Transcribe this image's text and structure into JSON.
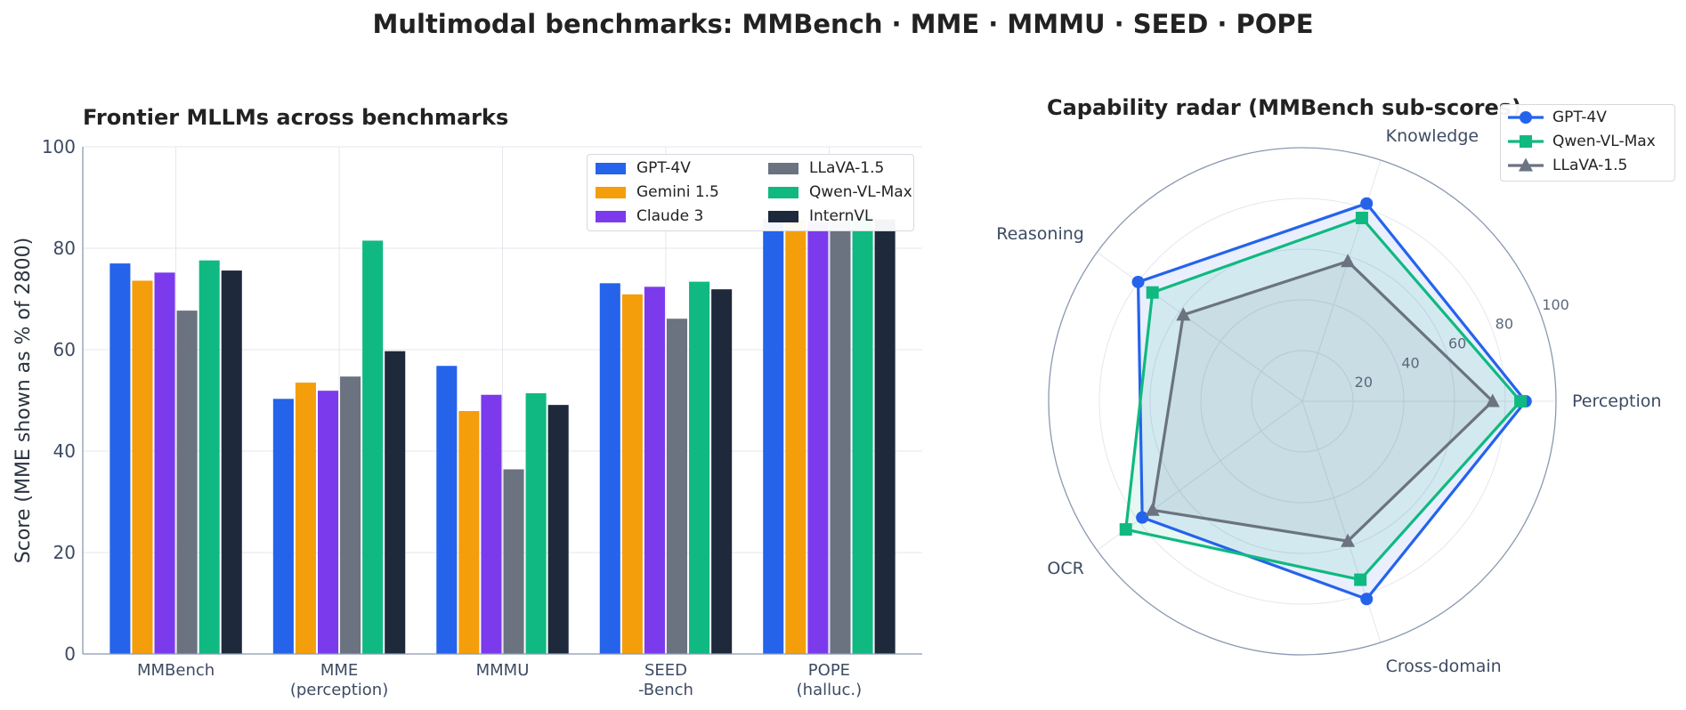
{
  "title": "Multimodal benchmarks: MMBench · MME · MMMU · SEED · POPE",
  "colors": {
    "GPT-4V": "#2563eb",
    "Gemini 1.5": "#f59e0b",
    "Claude 3": "#7c3aed",
    "LLaVA-1.5": "#6b7280",
    "Qwen-VL-Max": "#10b981",
    "InternVL": "#1e293b"
  },
  "chart_data": [
    {
      "type": "bar",
      "title": "Frontier MLLMs across benchmarks",
      "ylabel": "Score  (MME shown as % of 2800)",
      "xlabel": "",
      "categories": [
        "MMBench",
        "MME\n(perception)",
        "MMMU",
        "SEED\n-Bench",
        "POPE\n(halluc.)"
      ],
      "ylim": [
        0,
        100
      ],
      "yticks": [
        0,
        20,
        40,
        60,
        80,
        100
      ],
      "grid": true,
      "legend": "upper right, 2 columns",
      "series": [
        {
          "name": "GPT-4V",
          "values": [
            77.0,
            50.3,
            56.8,
            73.1,
            85.9
          ]
        },
        {
          "name": "Gemini 1.5",
          "values": [
            73.6,
            53.5,
            47.9,
            70.9,
            85.5
          ]
        },
        {
          "name": "Claude 3",
          "values": [
            75.2,
            51.9,
            51.1,
            72.4,
            85.2
          ]
        },
        {
          "name": "LLaVA-1.5",
          "values": [
            67.7,
            54.7,
            36.4,
            66.1,
            85.9
          ]
        },
        {
          "name": "Qwen-VL-Max",
          "values": [
            77.6,
            81.5,
            51.4,
            73.4,
            86.3
          ]
        },
        {
          "name": "InternVL",
          "values": [
            75.6,
            59.7,
            49.1,
            71.9,
            85.7
          ]
        }
      ]
    },
    {
      "type": "radar",
      "title": "Capability radar (MMBench sub-scores)",
      "axes": [
        "Perception",
        "Knowledge",
        "Reasoning",
        "OCR",
        "Cross-domain"
      ],
      "rlim": [
        0,
        100
      ],
      "rticks": [
        20,
        40,
        60,
        80,
        100
      ],
      "legend": "upper right",
      "series": [
        {
          "name": "GPT-4V",
          "values": [
            88,
            82,
            80,
            78,
            82
          ]
        },
        {
          "name": "Qwen-VL-Max",
          "values": [
            86,
            76,
            73,
            86,
            74
          ]
        },
        {
          "name": "LLaVA-1.5",
          "values": [
            75,
            58,
            58,
            73,
            58
          ]
        }
      ]
    }
  ]
}
